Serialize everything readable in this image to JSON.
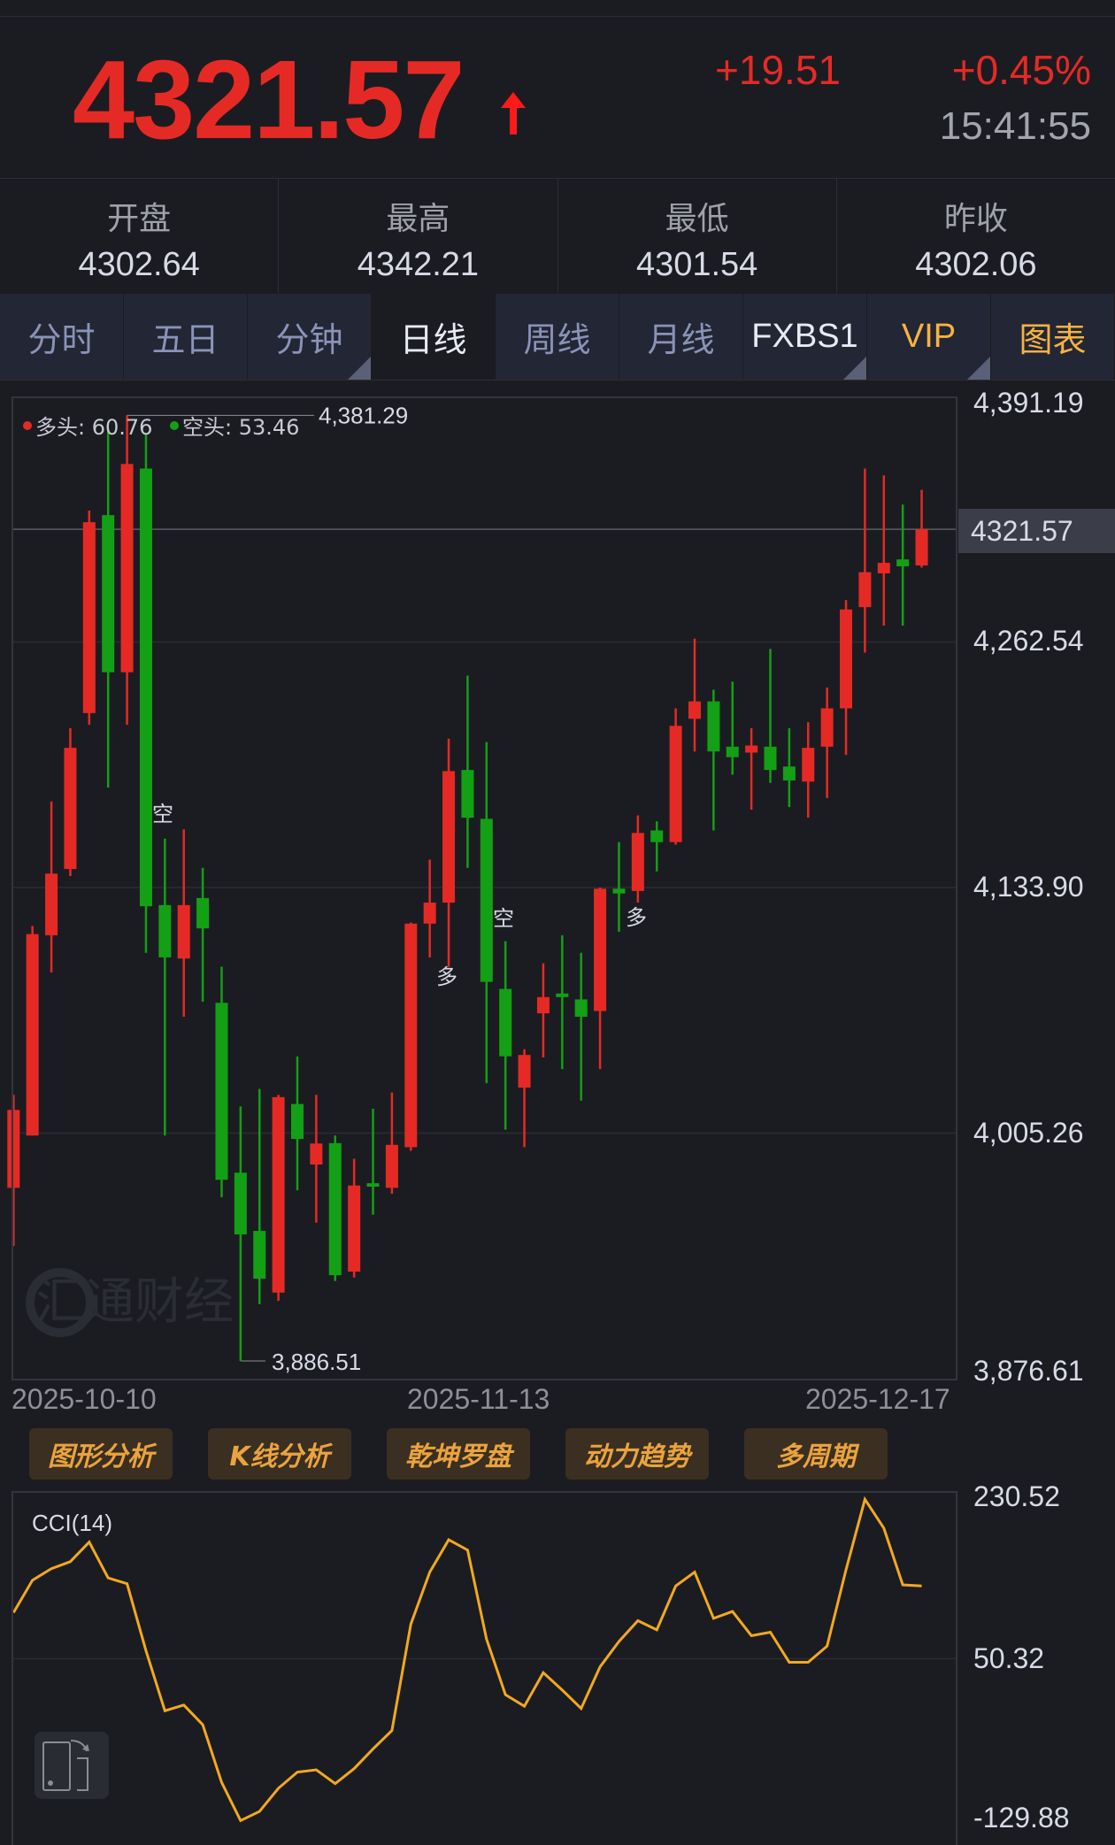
{
  "quote": {
    "price": "4321.57",
    "change": "+19.51",
    "change_pct": "+0.45%",
    "time": "15:41:55",
    "direction_icon": "arrow-up-icon",
    "up_color": "#e52a25",
    "down_color": "#13a015"
  },
  "stats": [
    {
      "label": "开盘",
      "value": "4302.64"
    },
    {
      "label": "最高",
      "value": "4342.21"
    },
    {
      "label": "最低",
      "value": "4301.54"
    },
    {
      "label": "昨收",
      "value": "4302.06"
    }
  ],
  "tabs": [
    {
      "label": "分时"
    },
    {
      "label": "五日"
    },
    {
      "label": "分钟"
    },
    {
      "label": "日线",
      "selected": true
    },
    {
      "label": "周线"
    },
    {
      "label": "月线"
    },
    {
      "label": "FXBS1"
    },
    {
      "label": "VIP"
    },
    {
      "label": "图表"
    }
  ],
  "legend": {
    "bull": "多头: 60.76",
    "bear": "空头: 53.46"
  },
  "watermark": "汇通财经",
  "buttons": [
    "图形分析",
    "K线分析",
    "乾坤罗盘",
    "动力趋势",
    "多周期"
  ],
  "chart_data": [
    {
      "type": "candlestick",
      "y_ticks": [
        "4,391.19",
        "4,262.54",
        "4,133.90",
        "4,005.26",
        "3,876.61"
      ],
      "ylim": [
        3876.61,
        4391.19
      ],
      "x_ticks": [
        "2025-10-10",
        "2025-11-13",
        "2025-12-17"
      ],
      "last_price_label": "4321.57",
      "max_label": "4,381.29",
      "min_label": "3,886.51",
      "signals": [
        {
          "index": 7,
          "text": "空"
        },
        {
          "index": 22,
          "text": "多"
        },
        {
          "index": 25,
          "text": "空"
        },
        {
          "index": 32,
          "text": "多"
        }
      ],
      "ohlc": [
        [
          3976.6,
          4025.3,
          3946.1,
          4017.4
        ],
        [
          4004,
          4113.8,
          4004,
          4109.5
        ],
        [
          4108.9,
          4179,
          4089.4,
          4141.2
        ],
        [
          4143.6,
          4217.4,
          4139.9,
          4207.1
        ],
        [
          4225.3,
          4331.4,
          4219.2,
          4325.3
        ],
        [
          4329,
          4374.1,
          4186.3,
          4246.7
        ],
        [
          4246.7,
          4381.29,
          4219.2,
          4355.8
        ],
        [
          4353.4,
          4371.7,
          4099.7,
          4124.1
        ],
        [
          4124.7,
          4159.5,
          4004,
          4097.3
        ],
        [
          4096.7,
          4164.4,
          4066.2,
          4124.7
        ],
        [
          4128.4,
          4144.2,
          4074.1,
          4112.5
        ],
        [
          4073.5,
          4092.4,
          3971.7,
          3980.8
        ],
        [
          3984.5,
          4019.2,
          3886.51,
          3952.2
        ],
        [
          3954,
          4028.4,
          3915.6,
          3929
        ],
        [
          3921.7,
          4025.3,
          3917.4,
          4024.1
        ],
        [
          4020.5,
          4045.4,
          3975.3,
          4002.2
        ],
        [
          3988.8,
          4025.3,
          3958.3,
          3999.8
        ],
        [
          4000,
          4004,
          3927.8,
          3930.8
        ],
        [
          3932.7,
          3991.8,
          3929.6,
          3977.8
        ],
        [
          3979,
          4018,
          3962.5,
          3977.2
        ],
        [
          3976.6,
          4026.5,
          3973.5,
          3999.1
        ],
        [
          3997.9,
          4115.6,
          3996,
          4115
        ],
        [
          4115,
          4148.5,
          4097.3,
          4126
        ],
        [
          4126,
          4211.9,
          4092.4,
          4194.9
        ],
        [
          4195.5,
          4244.9,
          4144.2,
          4170.5
        ],
        [
          4169.9,
          4210.1,
          4031.4,
          4084.5
        ],
        [
          4080.8,
          4105.8,
          4007.1,
          4045.5
        ],
        [
          4029.1,
          4049.2,
          3997.9,
          4046.2
        ],
        [
          4068,
          4094.2,
          4044.9,
          4076.5
        ],
        [
          4078.4,
          4108.9,
          4038.8,
          4076.5
        ],
        [
          4075.3,
          4099.7,
          4022.3,
          4066.2
        ],
        [
          4069.2,
          4133.9,
          4038.8,
          4133.3
        ],
        [
          4133.3,
          4157.7,
          4110.7,
          4130.8
        ],
        [
          4132.1,
          4171.7,
          4126,
          4162.5
        ],
        [
          4163.8,
          4168.6,
          4142.4,
          4157.7
        ],
        [
          4157.7,
          4227.8,
          4156.4,
          4218.6
        ],
        [
          4222.3,
          4264.3,
          4205.2,
          4231.4
        ],
        [
          4231.4,
          4237.5,
          4163.8,
          4205.2
        ],
        [
          4207.7,
          4241.8,
          4193,
          4202.2
        ],
        [
          4204.6,
          4217.4,
          4174.7,
          4208.3
        ],
        [
          4207.7,
          4258.9,
          4188.7,
          4195.5
        ],
        [
          4197.3,
          4217.4,
          4176,
          4190
        ],
        [
          4189.4,
          4220.5,
          4170.5,
          4207.1
        ],
        [
          4207.7,
          4238.7,
          4180.8,
          4227.8
        ],
        [
          4227.8,
          4284.5,
          4203.4,
          4279.6
        ],
        [
          4280.8,
          4353.4,
          4257,
          4299.1
        ],
        [
          4298.5,
          4349.8,
          4271.1,
          4304
        ],
        [
          4305.8,
          4334.5,
          4271.1,
          4302.2
        ],
        [
          4302.64,
          4342.21,
          4301.54,
          4321.57
        ]
      ]
    },
    {
      "type": "line",
      "title": "CCI(14)",
      "y_ticks": [
        "230.52",
        "50.32",
        "-129.88"
      ],
      "ylim": [
        -129.88,
        230.52
      ],
      "line_color": "#f2a91f",
      "values": [
        102.1,
        138.4,
        151.4,
        159.2,
        181.2,
        141,
        134.5,
        59.3,
        -8.1,
        -1.6,
        -23.7,
        -88.5,
        -131.3,
        -121,
        -95,
        -76.9,
        -74.3,
        -89.8,
        -73,
        -50.9,
        -30.2,
        89.2,
        147.5,
        183.8,
        172.2,
        72.3,
        10,
        -3,
        34.7,
        15.2,
        -5.5,
        41.2,
        69.7,
        93,
        82.7,
        132,
        147.5,
        95.6,
        103.4,
        76.2,
        80.1,
        46.3,
        46.3,
        64.5,
        150.1,
        229.2,
        196.8,
        133.2,
        132
      ]
    }
  ],
  "rotate_icon": "rotate-screen-icon"
}
